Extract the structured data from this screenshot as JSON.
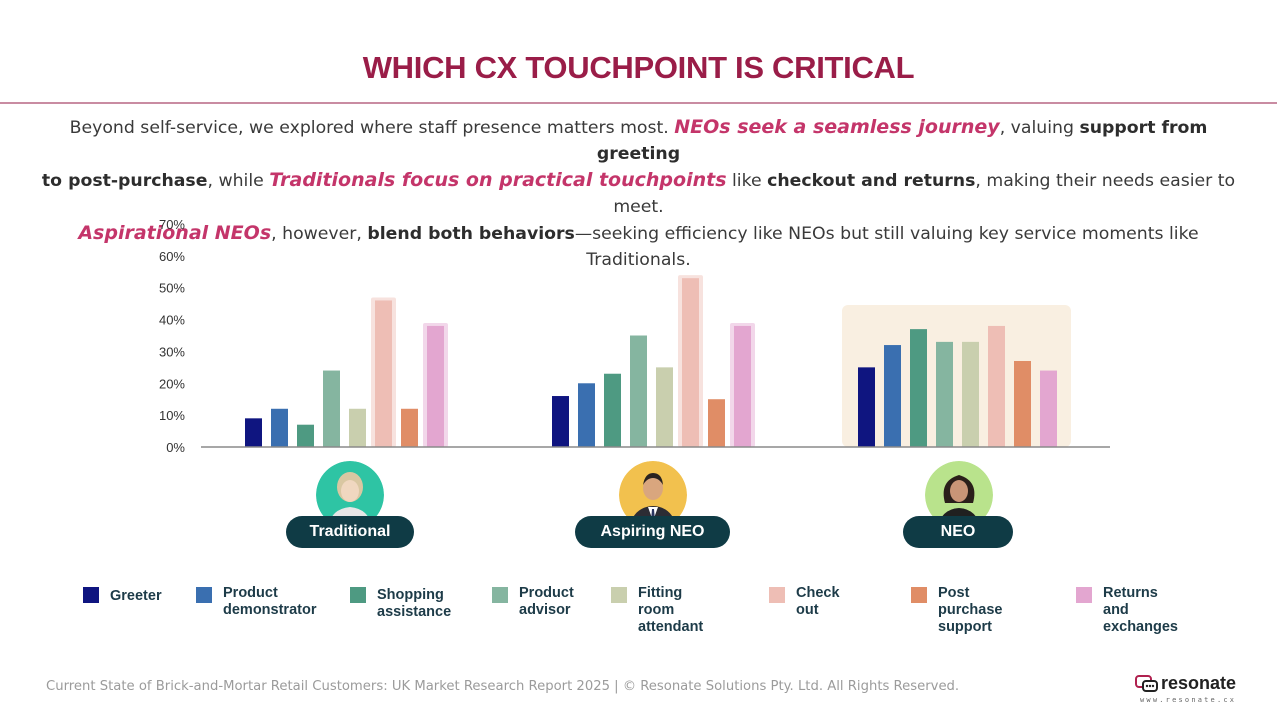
{
  "title": "WHICH CX TOUCHPOINT IS CRITICAL",
  "intro": {
    "l1a": "Beyond self-service, we explored where staff presence matters most. ",
    "l1b": "NEOs seek a seamless journey",
    "l1c": ", valuing ",
    "l1d": "support from greeting",
    "l2a": "to post-purchase",
    "l2b": ", while ",
    "l2c": "Traditionals focus on practical touchpoints",
    "l2d": " like ",
    "l2e": "checkout and returns",
    "l2f": ", making their needs easier to meet.",
    "l3a": "Aspirational NEOs",
    "l3b": ", however, ",
    "l3c": "blend both behaviors",
    "l3d": "—seeking efficiency like NEOs but still valuing key service moments like Traditionals."
  },
  "chart_data": {
    "type": "bar",
    "categories": [
      "Traditional",
      "Aspiring NEO",
      "NEO"
    ],
    "series": [
      {
        "name": "Greeter",
        "color": "#0f1580",
        "values": [
          9,
          16,
          25
        ]
      },
      {
        "name": "Product\ndemonstrator",
        "color": "#3a6fb0",
        "values": [
          12,
          20,
          32
        ]
      },
      {
        "name": "Shopping\nassistance",
        "color": "#4e9a82",
        "values": [
          7,
          23,
          37
        ]
      },
      {
        "name": "Product\nadvisor",
        "color": "#85b5a0",
        "values": [
          24,
          35,
          33
        ]
      },
      {
        "name": "Fitting room\nattendant",
        "color": "#c9cfae",
        "values": [
          12,
          25,
          33
        ]
      },
      {
        "name": "Check out",
        "color": "#eebeb5",
        "values": [
          46,
          53,
          38
        ]
      },
      {
        "name": "Post purchase\nsupport",
        "color": "#e08d66",
        "values": [
          12,
          15,
          27
        ]
      },
      {
        "name": "Returns and\nexchanges",
        "color": "#e3a6d0",
        "values": [
          38,
          38,
          24
        ]
      }
    ],
    "yticks": [
      "0%",
      "10%",
      "20%",
      "30%",
      "40%",
      "50%",
      "60%",
      "70%"
    ],
    "ylim": [
      0,
      70
    ],
    "highlights": [
      {
        "group": "Traditional",
        "series": [
          "Check out",
          "Returns and\nexchanges"
        ]
      },
      {
        "group": "Aspiring NEO",
        "series": [
          "Check out",
          "Returns and\nexchanges"
        ]
      },
      {
        "group": "NEO",
        "series": "all"
      }
    ],
    "legend_position": "bottom"
  },
  "segments": {
    "traditional": {
      "label": "Traditional",
      "avatar_bg": "#2ec4a4"
    },
    "aspiring": {
      "label": "Aspiring NEO",
      "avatar_bg": "#f2c14e"
    },
    "neo": {
      "label": "NEO",
      "avatar_bg": "#b9e38c"
    }
  },
  "colors": {
    "title": "#9a1d48",
    "accent": "#c4356a",
    "chip": "#0f3b45",
    "highlight_bg": "#f9efe1"
  },
  "footer": "Current State of Brick-and-Mortar Retail Customers: UK Market Research Report 2025 | © Resonate Solutions Pty. Ltd. All Rights Reserved.",
  "logo": {
    "name": "resonate",
    "url": "www.resonate.cx",
    "icon": "chat-bubble-icon"
  }
}
